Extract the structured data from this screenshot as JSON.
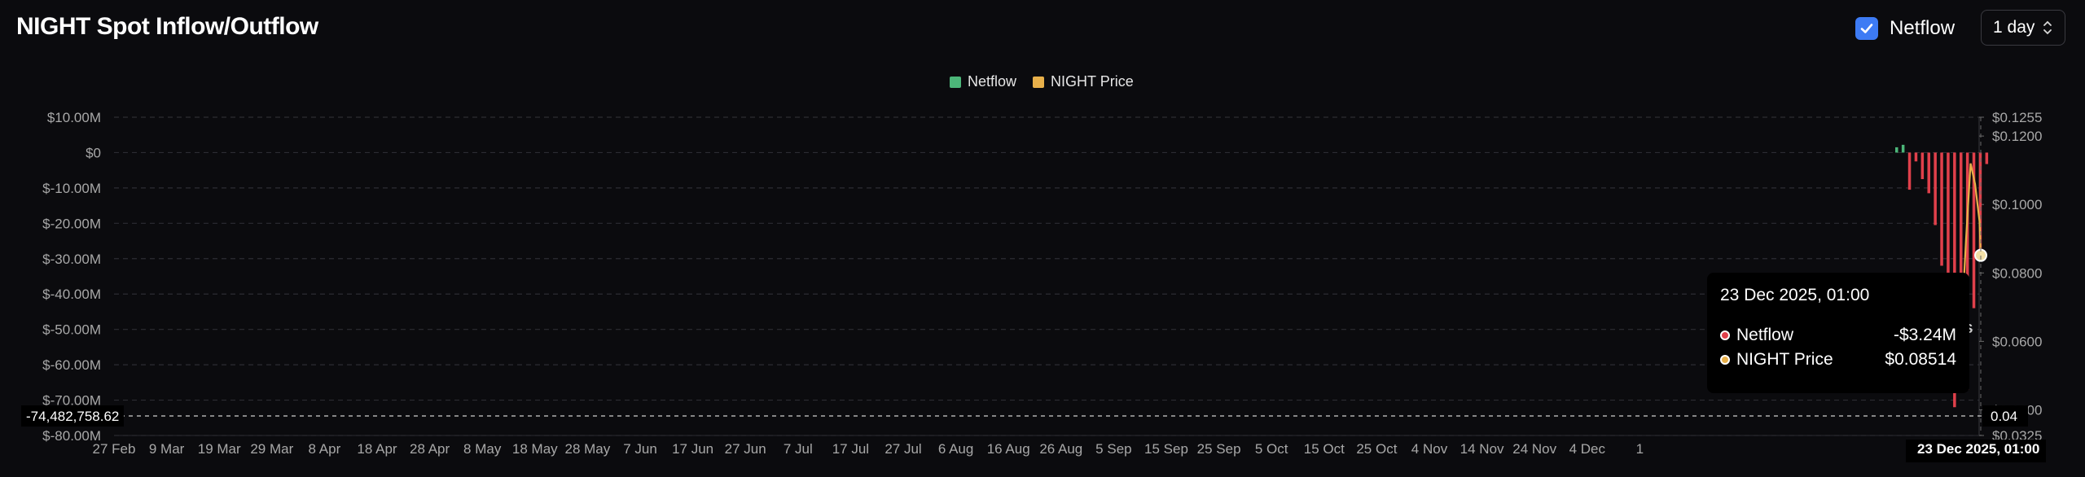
{
  "header": {
    "title": "NIGHT Spot Inflow/Outflow",
    "toggle_label": "Netflow",
    "toggle_checked": true,
    "interval_value": "1 day"
  },
  "legend": [
    {
      "label": "Netflow",
      "color": "#4cb679"
    },
    {
      "label": "NIGHT Price",
      "color": "#e8b04a"
    }
  ],
  "colors": {
    "inflow": "#4cb679",
    "outflow": "#e0404b",
    "price": "#e8b04a",
    "accent": "#3d7bf4"
  },
  "chart_data": {
    "type": "bar",
    "left_axis": {
      "ticks": [
        "$10.00M",
        "$0",
        "$-10.00M",
        "$-20.00M",
        "$-30.00M",
        "$-40.00M",
        "$-50.00M",
        "$-60.00M",
        "$-70.00M",
        "$-80.00M"
      ],
      "tick_values": [
        10,
        0,
        -10,
        -20,
        -30,
        -40,
        -50,
        -60,
        -70,
        -80
      ],
      "range": [
        -80,
        10
      ],
      "crosshair_label": "-74,482,758.62",
      "crosshair_value": -74.48
    },
    "right_axis": {
      "ticks": [
        "$0.1255",
        "$0.1200",
        "$0.1000",
        "$0.0800",
        "$0.0600",
        "$0.0400",
        "$0.0325"
      ],
      "tick_values": [
        0.1255,
        0.12,
        0.1,
        0.08,
        0.06,
        0.04,
        0.0325
      ],
      "range": [
        0.0325,
        0.1255
      ],
      "crosshair_label": "0.04"
    },
    "x_ticks": [
      "27 Feb",
      "9 Mar",
      "19 Mar",
      "29 Mar",
      "8 Apr",
      "18 Apr",
      "28 Apr",
      "8 May",
      "18 May",
      "28 May",
      "7 Jun",
      "17 Jun",
      "27 Jun",
      "7 Jul",
      "17 Jul",
      "27 Jul",
      "6 Aug",
      "16 Aug",
      "26 Aug",
      "5 Sep",
      "15 Sep",
      "25 Sep",
      "5 Oct",
      "15 Oct",
      "25 Oct",
      "4 Nov",
      "14 Nov",
      "24 Nov",
      "4 Dec",
      "1"
    ],
    "x_crosshair_label": "23 Dec 2025, 01:00",
    "series": [
      {
        "name": "Netflow",
        "unit": "$M",
        "values": [
          1.5,
          2.2,
          -10.5,
          -2.5,
          -7.5,
          -11.5,
          -20.5,
          -32,
          -41,
          -72,
          -58,
          -67,
          -44,
          -30,
          -3.24
        ]
      },
      {
        "name": "NIGHT Price",
        "unit": "$",
        "values": [
          0.06,
          0.065,
          0.09,
          0.112,
          0.106,
          0.0951
        ]
      }
    ],
    "price_end": 0.08514,
    "ss_label": "SS",
    "grid": true
  },
  "tooltip": {
    "title": "23 Dec 2025, 01:00",
    "rows": [
      {
        "label": "Netflow",
        "value": "-$3.24M",
        "color": "#e0404b"
      },
      {
        "label": "NIGHT Price",
        "value": "$0.08514",
        "color": "#e8b04a"
      }
    ]
  }
}
